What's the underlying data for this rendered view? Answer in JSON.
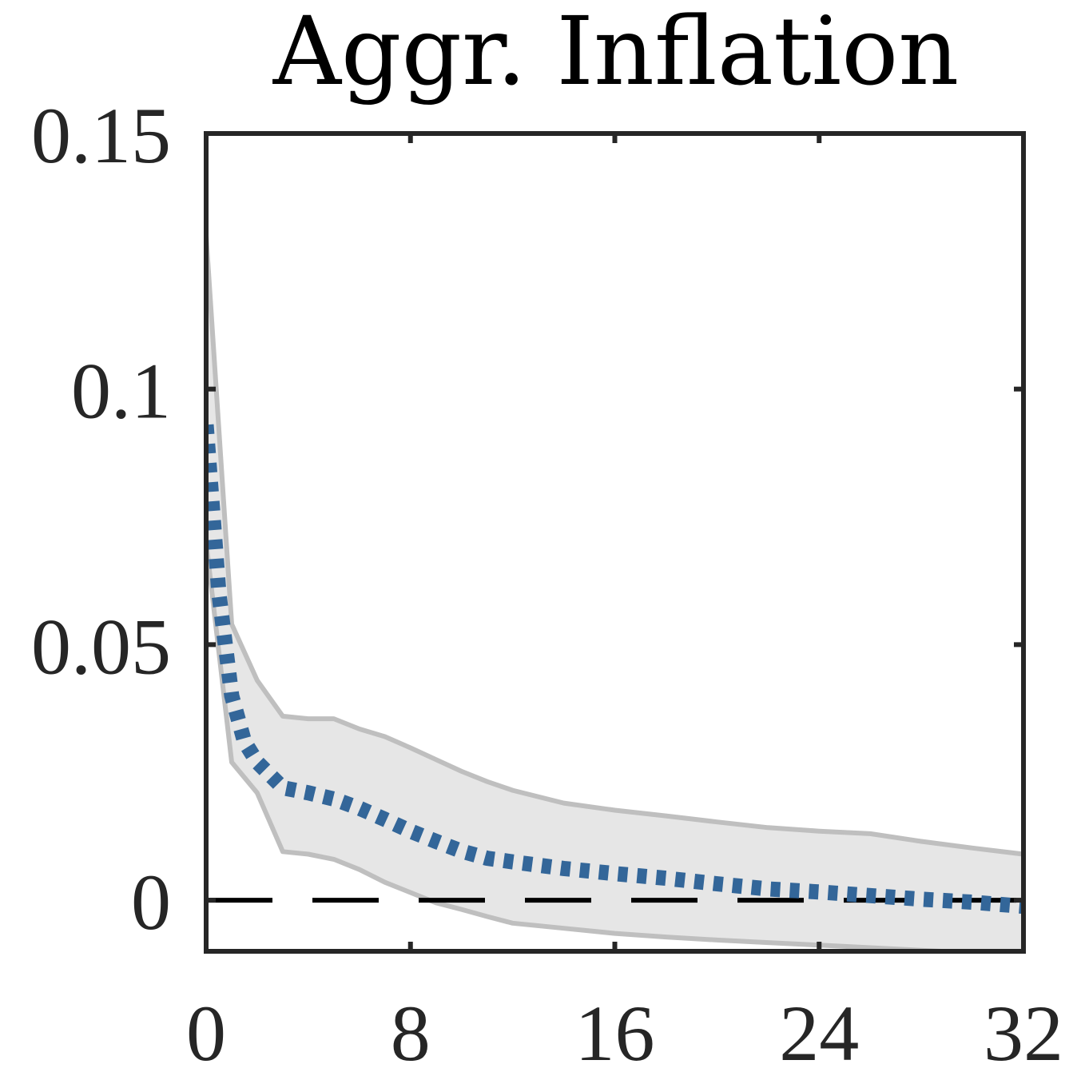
{
  "chart_data": {
    "type": "line",
    "title": "Aggr. Inflation",
    "xlabel": "",
    "ylabel": "",
    "xlim": [
      0,
      32
    ],
    "ylim": [
      -0.01,
      0.15
    ],
    "xticks": [
      0,
      8,
      16,
      24,
      32
    ],
    "xtick_labels": [
      "0",
      "8",
      "16",
      "24",
      "32"
    ],
    "yticks": [
      0,
      0.05,
      0.1,
      0.15
    ],
    "ytick_labels": [
      "0",
      "0.05",
      "0.1",
      "0.15"
    ],
    "grid": false,
    "zero_line": {
      "y": 0,
      "style": "dashed",
      "color": "#000000"
    },
    "band": {
      "color_fill": "#e6e6e6",
      "color_edge": "#bfbfbf",
      "x": [
        0,
        1,
        2,
        3,
        4,
        5,
        6,
        7,
        8,
        9,
        10,
        11,
        12,
        14,
        16,
        18,
        20,
        22,
        24,
        26,
        28,
        30,
        32
      ],
      "upper": [
        0.13,
        0.054,
        0.043,
        0.036,
        0.0355,
        0.0355,
        0.0335,
        0.032,
        0.0298,
        0.0275,
        0.0252,
        0.0232,
        0.0215,
        0.019,
        0.0176,
        0.0165,
        0.0153,
        0.0142,
        0.0135,
        0.013,
        0.0115,
        0.0102,
        0.009
      ],
      "lower": [
        0.07,
        0.027,
        0.021,
        0.0095,
        0.009,
        0.008,
        0.006,
        0.0035,
        0.0015,
        -0.0005,
        -0.0018,
        -0.0032,
        -0.0045,
        -0.0055,
        -0.0065,
        -0.0072,
        -0.0078,
        -0.0083,
        -0.0088,
        -0.0093,
        -0.0098,
        -0.0103,
        -0.0108
      ]
    },
    "series": [
      {
        "color": "#336699",
        "style": "dotted",
        "x": [
          0,
          0.5,
          1,
          1.5,
          2,
          3,
          4,
          5,
          6,
          7,
          8,
          9,
          10,
          11,
          12,
          14,
          16,
          18,
          20,
          22,
          24,
          26,
          28,
          30,
          32
        ],
        "values": [
          0.093,
          0.06,
          0.04,
          0.031,
          0.027,
          0.022,
          0.021,
          0.0198,
          0.018,
          0.0158,
          0.0135,
          0.0115,
          0.0096,
          0.0082,
          0.0075,
          0.0062,
          0.0052,
          0.0043,
          0.0032,
          0.0022,
          0.0016,
          0.0009,
          0.0002,
          -0.0004,
          -0.0012
        ]
      }
    ]
  }
}
